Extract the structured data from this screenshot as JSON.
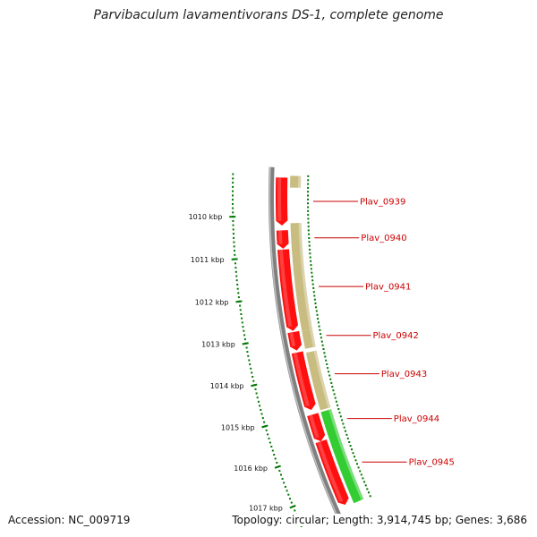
{
  "title": "Parvibaculum lavamentivorans DS-1, complete genome",
  "accession": "Accession: NC_009719",
  "topology": "Topology: circular; Length: 3,914,745 bp; Genes: 3,686",
  "ruler_ticks": [
    {
      "kbp": 1010,
      "label": "1010 kbp"
    },
    {
      "kbp": 1011,
      "label": "1011 kbp"
    },
    {
      "kbp": 1012,
      "label": "1012 kbp"
    },
    {
      "kbp": 1013,
      "label": "1013 kbp"
    },
    {
      "kbp": 1014,
      "label": "1014 kbp"
    },
    {
      "kbp": 1015,
      "label": "1015 kbp"
    },
    {
      "kbp": 1016,
      "label": "1016 kbp"
    },
    {
      "kbp": 1017,
      "label": "1017 kbp"
    }
  ],
  "genes": [
    {
      "label": "Plav_0939",
      "start_kbp": 1009.05,
      "end_kbp": 1010.25
    },
    {
      "label": "Plav_0940",
      "start_kbp": 1010.37,
      "end_kbp": 1010.83
    },
    {
      "label": "Plav_0941",
      "start_kbp": 1010.85,
      "end_kbp": 1012.9
    },
    {
      "label": "Plav_0942",
      "start_kbp": 1012.93,
      "end_kbp": 1013.4
    },
    {
      "label": "Plav_0943",
      "start_kbp": 1013.45,
      "end_kbp": 1014.93
    },
    {
      "label": "Plav_0944",
      "start_kbp": 1015.05,
      "end_kbp": 1015.75
    },
    {
      "label": "Plav_0945",
      "start_kbp": 1015.75,
      "end_kbp": 1017.45
    }
  ],
  "features": [
    {
      "kind": "tan",
      "start_kbp": 1009.0,
      "end_kbp": 1009.3
    },
    {
      "kind": "tan",
      "start_kbp": 1010.2,
      "end_kbp": 1012.94
    },
    {
      "kind": "tan",
      "start_kbp": 1012.94,
      "end_kbp": 1013.4
    },
    {
      "kind": "tan",
      "start_kbp": 1013.5,
      "end_kbp": 1015.0
    },
    {
      "kind": "orange",
      "start_kbp": 1015.05,
      "end_kbp": 1015.75
    },
    {
      "kind": "green",
      "start_kbp": 1015.05,
      "end_kbp": 1017.5
    }
  ],
  "colors": {
    "cds": "#ff1010",
    "cds_light": "#ff6060",
    "tan": "#c8bc80",
    "orange": "#ff9900",
    "green": "#33cc33",
    "backbone": "#808080",
    "ruler": "#007700",
    "label": "#cc0000"
  }
}
